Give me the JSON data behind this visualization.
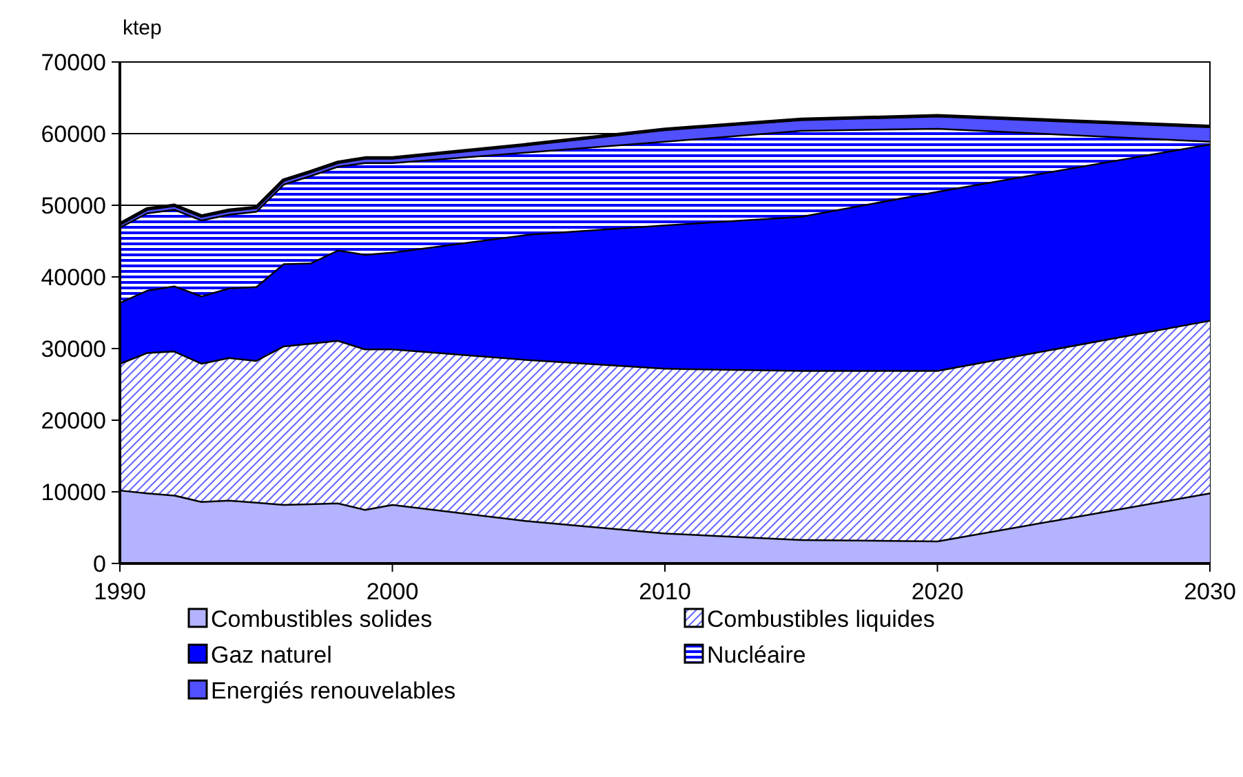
{
  "chart_data": {
    "type": "area",
    "stacked": true,
    "ylabel": "ktep",
    "x": [
      1990,
      1991,
      1992,
      1993,
      1994,
      1995,
      1996,
      1997,
      1998,
      1999,
      2000,
      2005,
      2010,
      2015,
      2020,
      2030
    ],
    "xlim": [
      1990,
      2030
    ],
    "xticks": [
      1990,
      2000,
      2010,
      2020,
      2030
    ],
    "ylim": [
      0,
      70000
    ],
    "yticks": [
      0,
      10000,
      20000,
      30000,
      40000,
      50000,
      60000,
      70000
    ],
    "grid": "y",
    "legend": "bottom",
    "series": [
      {
        "name": "Combustibles solides",
        "color": "#b3b3ff",
        "values": [
          10300,
          9900,
          9600,
          8700,
          8900,
          8600,
          8300,
          8400,
          8500,
          7600,
          8300,
          6000,
          4300,
          3400,
          3200,
          9900
        ]
      },
      {
        "name": "Combustibles liquides",
        "color": "#6666ff",
        "values": [
          17700,
          19600,
          20100,
          19300,
          19900,
          19800,
          22100,
          22400,
          22700,
          22400,
          21700,
          22500,
          23000,
          23600,
          23800,
          24100
        ]
      },
      {
        "name": "Gaz naturel",
        "color": "#0000ff",
        "values": [
          8500,
          8700,
          9100,
          9400,
          9700,
          10300,
          11500,
          11200,
          12600,
          13200,
          13500,
          17500,
          20000,
          21500,
          25000,
          24600
        ]
      },
      {
        "name": "Nucléaire",
        "color": "#0000ff",
        "values": [
          10500,
          10800,
          10700,
          10600,
          10300,
          10500,
          11100,
          12200,
          11700,
          12800,
          12500,
          11500,
          11700,
          12000,
          8800,
          400
        ]
      },
      {
        "name": "Energiés renouvelables",
        "color": "#5050ff",
        "values": [
          400,
          500,
          500,
          500,
          500,
          500,
          500,
          500,
          500,
          600,
          600,
          1000,
          1600,
          1500,
          1700,
          2000
        ]
      }
    ]
  }
}
